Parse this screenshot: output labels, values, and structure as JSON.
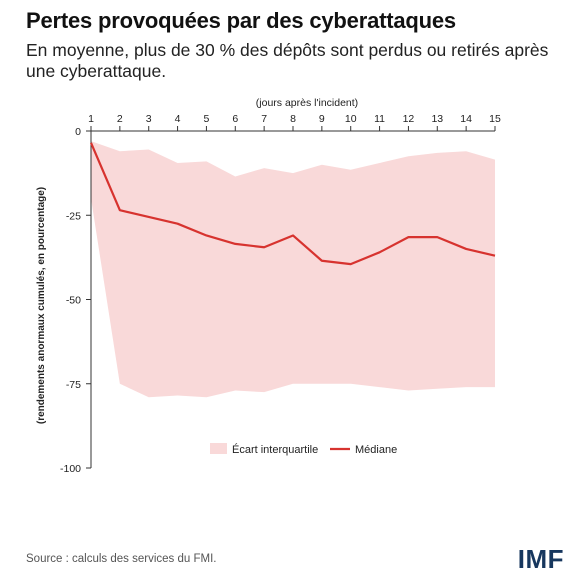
{
  "header": {
    "title": "Pertes provoquées par des cyberattaques",
    "subtitle": "En moyenne, plus de 30 % des dépôts sont perdus ou retirés après une cyberattaque."
  },
  "footer": {
    "source": "Source : calculs des services du FMI.",
    "logo": "IMF"
  },
  "colors": {
    "band": "#f9d9d9",
    "median": "#d7332f",
    "axis": "#333333",
    "logo": "#17375e"
  },
  "chart_data": {
    "type": "area",
    "x": [
      1,
      2,
      3,
      4,
      5,
      6,
      7,
      8,
      9,
      10,
      11,
      12,
      13,
      14,
      15
    ],
    "xlabel": "(jours après l'incident)",
    "ylabel": "(rendements anormaux cumulés, en pourcentage)",
    "ylim": [
      -100,
      0
    ],
    "yticks": [
      0,
      -25,
      -50,
      -75,
      -100
    ],
    "xlim": [
      1,
      15
    ],
    "x_axis_position": "top",
    "grid": false,
    "legend_position": "bottom",
    "series": [
      {
        "name": "Écart interquartile",
        "kind": "band",
        "upper": [
          -3,
          -6,
          -5.5,
          -9.5,
          -9,
          -13.5,
          -11,
          -12.5,
          -10,
          -11.5,
          -9.5,
          -7.5,
          -6.5,
          -6,
          -8.5
        ],
        "lower": [
          -20,
          -75,
          -79,
          -78.5,
          -79,
          -77,
          -77.5,
          -75,
          -75,
          -75,
          -76,
          -77,
          -76.5,
          -76,
          -76
        ]
      },
      {
        "name": "Médiane",
        "kind": "line",
        "values": [
          -3.5,
          -23.5,
          -25.5,
          -27.5,
          -31,
          -33.5,
          -34.5,
          -31,
          -38.5,
          -39.5,
          -36,
          -31.5,
          -31.5,
          -35,
          -37
        ]
      }
    ]
  }
}
